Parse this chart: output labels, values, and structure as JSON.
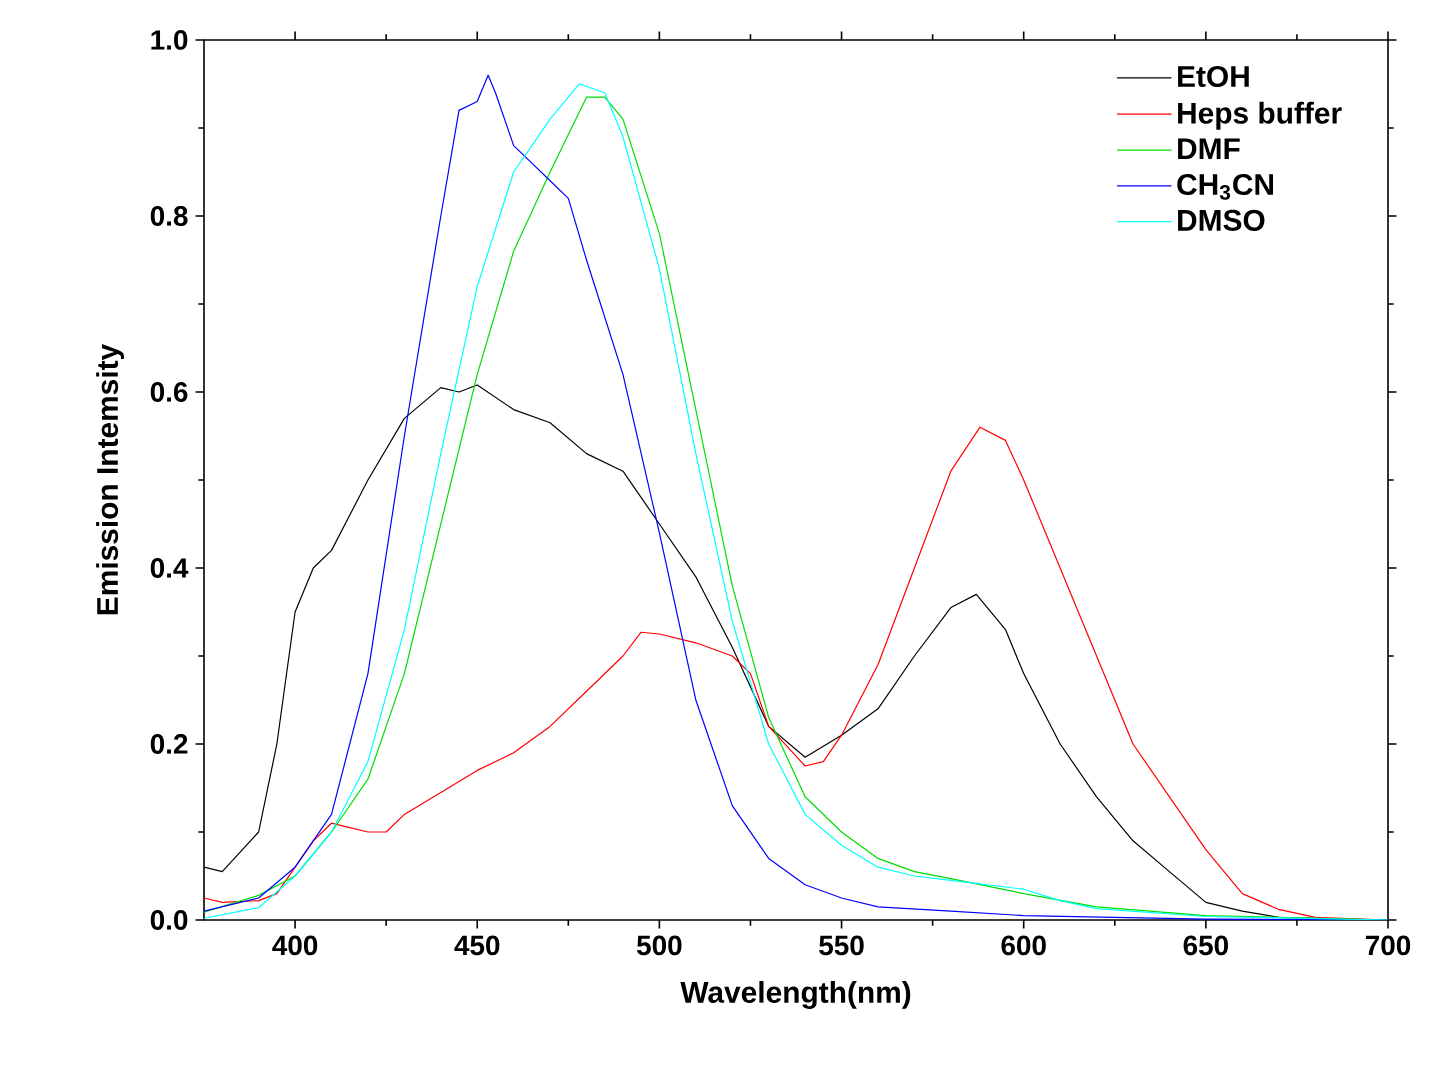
{
  "chart_data": {
    "type": "line",
    "xlabel": "Wavelength(nm)",
    "ylabel": "Emission Intemsity",
    "xlim": [
      375,
      700
    ],
    "ylim": [
      0,
      1.0
    ],
    "xticks": [
      400,
      450,
      500,
      550,
      600,
      650,
      700
    ],
    "yticks": [
      {
        "value": 0,
        "label": "0.0"
      },
      {
        "value": 0.2,
        "label": "0.2"
      },
      {
        "value": 0.4,
        "label": "0.4"
      },
      {
        "value": 0.6,
        "label": "0.6"
      },
      {
        "value": 0.8,
        "label": "0.8"
      },
      {
        "value": 1.0,
        "label": "1.0"
      }
    ],
    "grid": false,
    "legend": "top right",
    "marker": "none",
    "line_style": "solid",
    "series": [
      {
        "name": "EtOH",
        "color": "#000000",
        "x": [
          375,
          380,
          390,
          395,
          400,
          405,
          410,
          420,
          430,
          440,
          445,
          450,
          460,
          470,
          480,
          490,
          500,
          510,
          520,
          530,
          540,
          550,
          560,
          570,
          580,
          587,
          595,
          600,
          610,
          620,
          630,
          640,
          650,
          660,
          670,
          700
        ],
        "values": [
          0.06,
          0.055,
          0.1,
          0.2,
          0.35,
          0.4,
          0.42,
          0.5,
          0.57,
          0.605,
          0.6,
          0.608,
          0.58,
          0.565,
          0.53,
          0.51,
          0.45,
          0.39,
          0.31,
          0.22,
          0.185,
          0.21,
          0.24,
          0.3,
          0.355,
          0.37,
          0.33,
          0.28,
          0.2,
          0.14,
          0.09,
          0.055,
          0.02,
          0.01,
          0.003,
          0
        ]
      },
      {
        "name": "Heps buffer",
        "color": "#ff0000",
        "x": [
          375,
          380,
          390,
          395,
          400,
          405,
          410,
          415,
          420,
          425,
          430,
          440,
          450,
          460,
          470,
          480,
          490,
          495,
          500,
          510,
          520,
          525,
          530,
          540,
          545,
          550,
          560,
          570,
          580,
          588,
          595,
          600,
          610,
          620,
          630,
          640,
          650,
          660,
          670,
          680,
          700
        ],
        "values": [
          0.025,
          0.02,
          0.022,
          0.03,
          0.06,
          0.09,
          0.11,
          0.105,
          0.1,
          0.1,
          0.12,
          0.145,
          0.17,
          0.19,
          0.22,
          0.26,
          0.3,
          0.327,
          0.325,
          0.315,
          0.3,
          0.28,
          0.22,
          0.175,
          0.18,
          0.21,
          0.29,
          0.4,
          0.51,
          0.56,
          0.545,
          0.5,
          0.4,
          0.3,
          0.2,
          0.14,
          0.08,
          0.03,
          0.012,
          0.003,
          0
        ]
      },
      {
        "name": "DMF",
        "color": "#00dd00",
        "x": [
          375,
          390,
          400,
          410,
          420,
          430,
          440,
          450,
          460,
          470,
          480,
          485,
          490,
          500,
          510,
          520,
          530,
          540,
          550,
          560,
          570,
          580,
          600,
          620,
          650,
          700
        ],
        "values": [
          0.009,
          0.028,
          0.05,
          0.1,
          0.16,
          0.28,
          0.45,
          0.62,
          0.76,
          0.85,
          0.935,
          0.935,
          0.91,
          0.78,
          0.58,
          0.38,
          0.23,
          0.14,
          0.1,
          0.07,
          0.055,
          0.047,
          0.03,
          0.015,
          0.005,
          0
        ]
      },
      {
        "name": "CH$_{3}$CN",
        "color": "#0000ff",
        "x": [
          375,
          390,
          400,
          410,
          420,
          430,
          440,
          445,
          450,
          453,
          455,
          460,
          465,
          470,
          475,
          480,
          490,
          500,
          510,
          520,
          530,
          540,
          550,
          560,
          580,
          600,
          650,
          700
        ],
        "values": [
          0.01,
          0.025,
          0.06,
          0.12,
          0.28,
          0.55,
          0.8,
          0.92,
          0.93,
          0.96,
          0.94,
          0.88,
          0.86,
          0.84,
          0.82,
          0.75,
          0.62,
          0.44,
          0.25,
          0.13,
          0.07,
          0.04,
          0.025,
          0.015,
          0.01,
          0.005,
          0.001,
          0
        ]
      },
      {
        "name": "DMSO",
        "color": "#00ffff",
        "x": [
          375,
          390,
          400,
          410,
          420,
          430,
          440,
          450,
          460,
          465,
          470,
          478,
          485,
          490,
          500,
          510,
          520,
          530,
          540,
          550,
          560,
          570,
          580,
          600,
          610,
          620,
          650,
          700
        ],
        "values": [
          0.002,
          0.014,
          0.05,
          0.1,
          0.18,
          0.33,
          0.53,
          0.72,
          0.85,
          0.88,
          0.91,
          0.95,
          0.94,
          0.89,
          0.74,
          0.53,
          0.34,
          0.2,
          0.12,
          0.085,
          0.06,
          0.05,
          0.045,
          0.035,
          0.022,
          0.013,
          0.004,
          0
        ]
      }
    ]
  }
}
